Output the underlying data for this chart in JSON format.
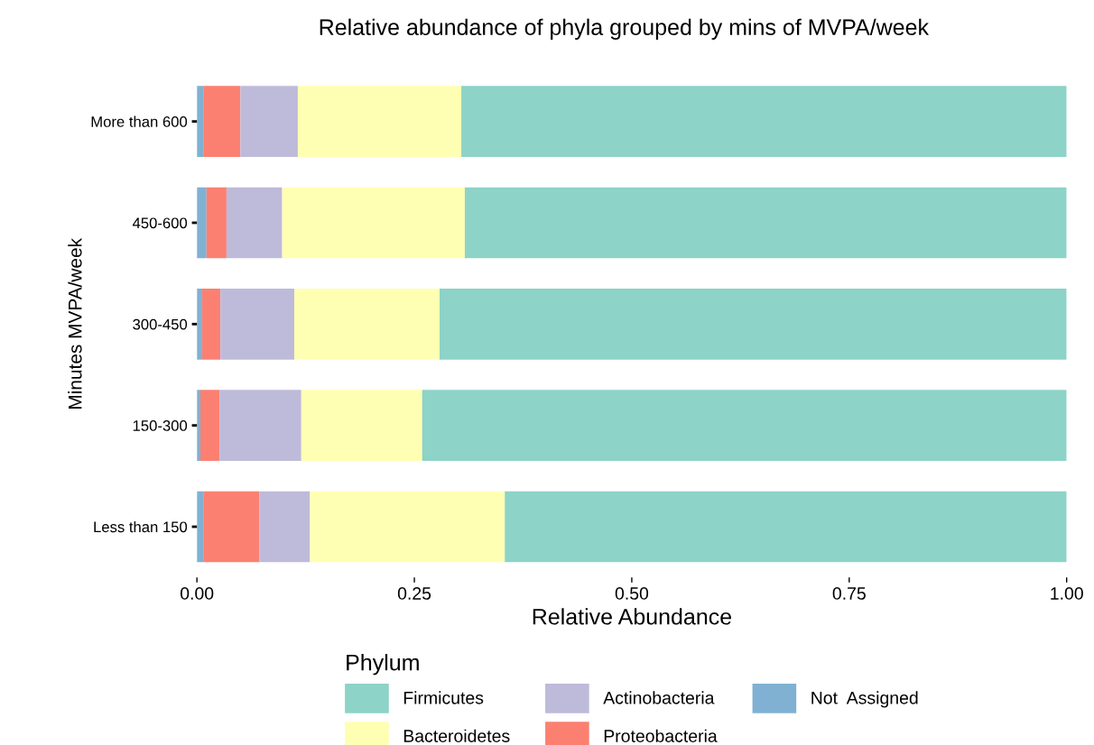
{
  "chart_data": {
    "type": "bar",
    "orientation": "horizontal",
    "stacked": true,
    "title": "Relative abundance of phyla grouped by mins of MVPA/week",
    "xlabel": "Relative Abundance",
    "ylabel": "Minutes MVPA/week",
    "categories": [
      "More than 600",
      "450-600",
      "300-450",
      "150-300",
      "Less than 150"
    ],
    "series": [
      {
        "name": "Not  Assigned",
        "color": "#80b1d3",
        "values": [
          0.008,
          0.011,
          0.006,
          0.004,
          0.008
        ]
      },
      {
        "name": "Proteobacteria",
        "color": "#fb8072",
        "values": [
          0.042,
          0.023,
          0.021,
          0.022,
          0.064
        ]
      },
      {
        "name": "Actinobacteria",
        "color": "#bebada",
        "values": [
          0.066,
          0.064,
          0.085,
          0.094,
          0.058
        ]
      },
      {
        "name": "Bacteroidetes",
        "color": "#ffffb3",
        "values": [
          0.188,
          0.21,
          0.167,
          0.139,
          0.224
        ]
      },
      {
        "name": "Firmicutes",
        "color": "#8dd3c7",
        "values": [
          0.696,
          0.692,
          0.721,
          0.741,
          0.646
        ]
      }
    ],
    "xlim": [
      0,
      1
    ],
    "xticks": [
      {
        "value": 0,
        "label": "0.00"
      },
      {
        "value": 0.25,
        "label": "0.25"
      },
      {
        "value": 0.5,
        "label": "0.50"
      },
      {
        "value": 0.75,
        "label": "0.75"
      },
      {
        "value": 1,
        "label": "1.00"
      }
    ],
    "legend": "bottom",
    "legend_title": "Phylum",
    "grid": false
  }
}
